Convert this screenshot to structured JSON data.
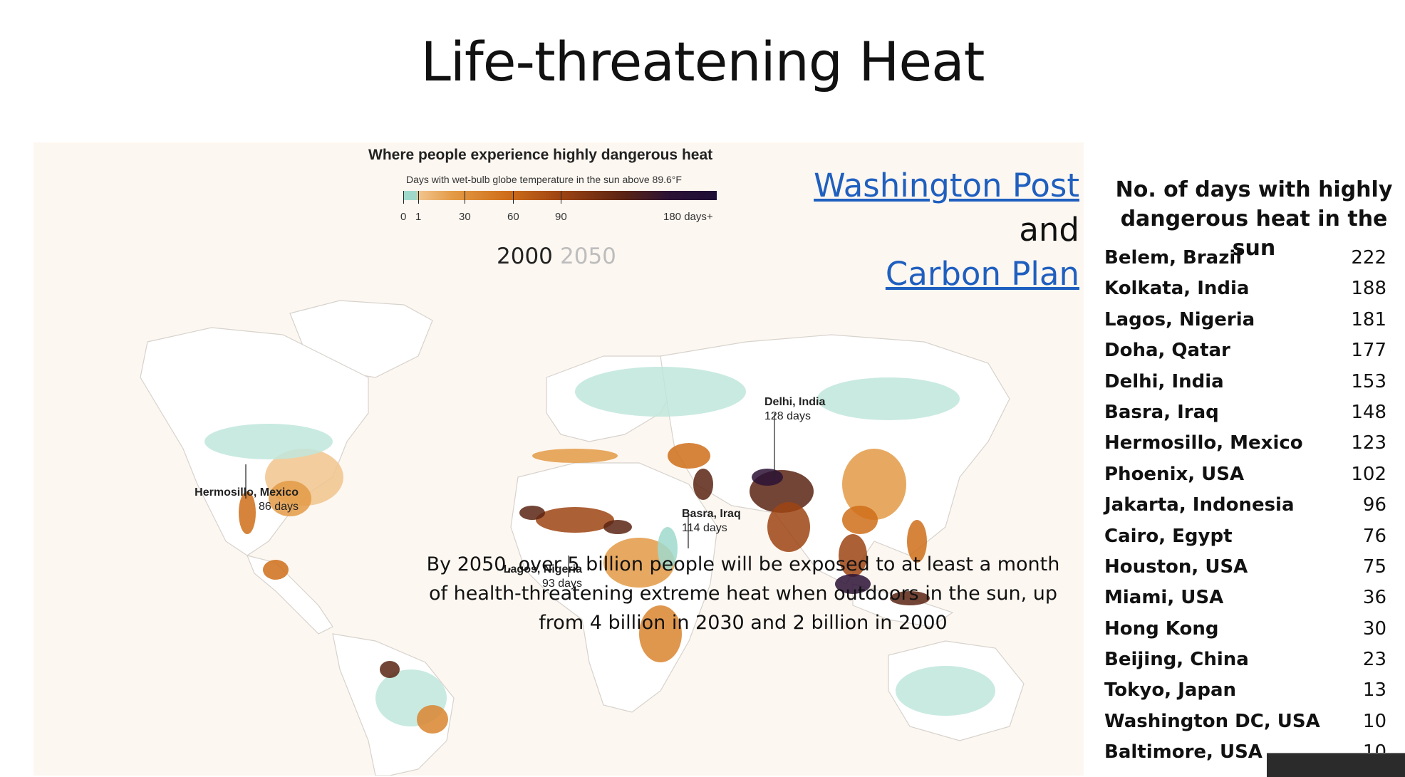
{
  "slide": {
    "title": "Life-threatening Heat"
  },
  "map": {
    "heading": "Where people experience highly dangerous heat",
    "legend_subtitle": "Days with wet-bulb globe temperature in the sun above 89.6°F",
    "legend_ticks": [
      "0",
      "1",
      "30",
      "60",
      "90",
      "180 days+"
    ],
    "year_active": "2000",
    "year_inactive": "2050",
    "callouts": [
      {
        "name": "Delhi, India",
        "days": "128 days"
      },
      {
        "name": "Hermosillo, Mexico",
        "days": "86 days"
      },
      {
        "name": "Basra, Iraq",
        "days": "114 days"
      },
      {
        "name": "Lagos, Nigeria",
        "days": "93 days"
      }
    ],
    "caption": "By 2050, over 5 billion people will be exposed to at least a month of health-threatening extreme heat when outdoors in the sun, up from 4 billion in 2030 and 2 billion in 2000",
    "colors": {
      "cool": "#9fd9cc",
      "light": "#f1c48d",
      "mid": "#d9852f",
      "hot": "#9e4413",
      "extreme": "#2b1235"
    }
  },
  "sources": {
    "link1": "Washington Post",
    "connector": "and",
    "link2": "Carbon Plan",
    "link_color": "#1f5fbf"
  },
  "table": {
    "header": "No. of days with highly dangerous heat in the sun",
    "rows": [
      {
        "city": "Belem, Brazil",
        "days": "222"
      },
      {
        "city": "Kolkata, India",
        "days": "188"
      },
      {
        "city": "Lagos, Nigeria",
        "days": "181"
      },
      {
        "city": "Doha, Qatar",
        "days": "177"
      },
      {
        "city": "Delhi, India",
        "days": "153"
      },
      {
        "city": "Basra, Iraq",
        "days": "148"
      },
      {
        "city": "Hermosillo, Mexico",
        "days": "123"
      },
      {
        "city": "Phoenix, USA",
        "days": "102"
      },
      {
        "city": "Jakarta, Indonesia",
        "days": "96"
      },
      {
        "city": "Cairo, Egypt",
        "days": "76"
      },
      {
        "city": "Houston, USA",
        "days": "75"
      },
      {
        "city": "Miami, USA",
        "days": "36"
      },
      {
        "city": "Hong Kong",
        "days": "30"
      },
      {
        "city": "Beijing, China",
        "days": "23"
      },
      {
        "city": "Tokyo, Japan",
        "days": "13"
      },
      {
        "city": "Washington DC, USA",
        "days": "10"
      },
      {
        "city": "Baltimore, USA",
        "days": "10"
      }
    ]
  }
}
